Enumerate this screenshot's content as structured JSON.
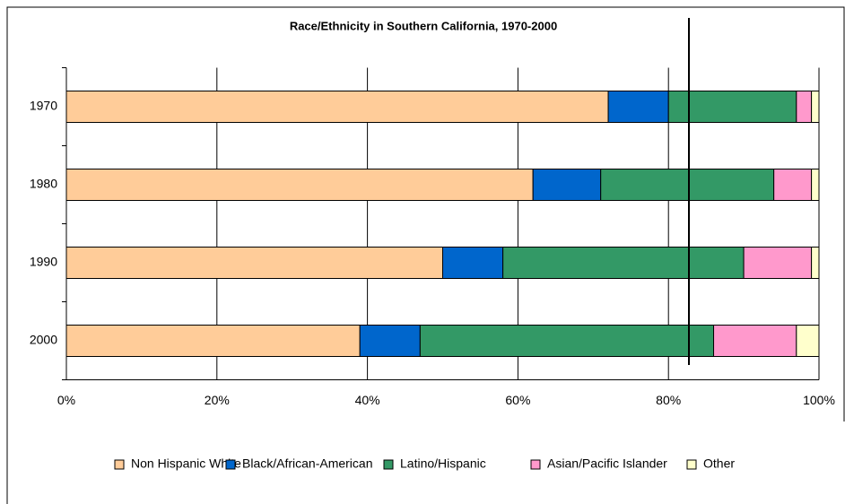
{
  "chart_data": {
    "type": "stacked_barh",
    "title": "Race/Ethnicity in Southern California, 1970-2000",
    "categories": [
      "1970",
      "1980",
      "1990",
      "2000"
    ],
    "series": [
      {
        "name": "Non Hispanic White",
        "color": "#ffcc99",
        "values": [
          72,
          62,
          50,
          39
        ]
      },
      {
        "name": "Black/African-American",
        "color": "#0066cc",
        "values": [
          8,
          9,
          8,
          8
        ]
      },
      {
        "name": "Latino/Hispanic",
        "color": "#339966",
        "values": [
          17,
          23,
          32,
          39
        ]
      },
      {
        "name": "Asian/Pacific Islander",
        "color": "#ff99cc",
        "values": [
          2,
          5,
          9,
          11
        ]
      },
      {
        "name": "Other",
        "color": "#ffffcc",
        "values": [
          1,
          1,
          1,
          3
        ]
      }
    ],
    "xlim": [
      0,
      100
    ],
    "xticks": [
      {
        "value": 0,
        "label": "0%"
      },
      {
        "value": 20,
        "label": "20%"
      },
      {
        "value": 40,
        "label": "40%"
      },
      {
        "value": 60,
        "label": "60%"
      },
      {
        "value": 80,
        "label": "80%"
      },
      {
        "value": 100,
        "label": "100%"
      }
    ],
    "grid": true,
    "legend": "bottom"
  }
}
